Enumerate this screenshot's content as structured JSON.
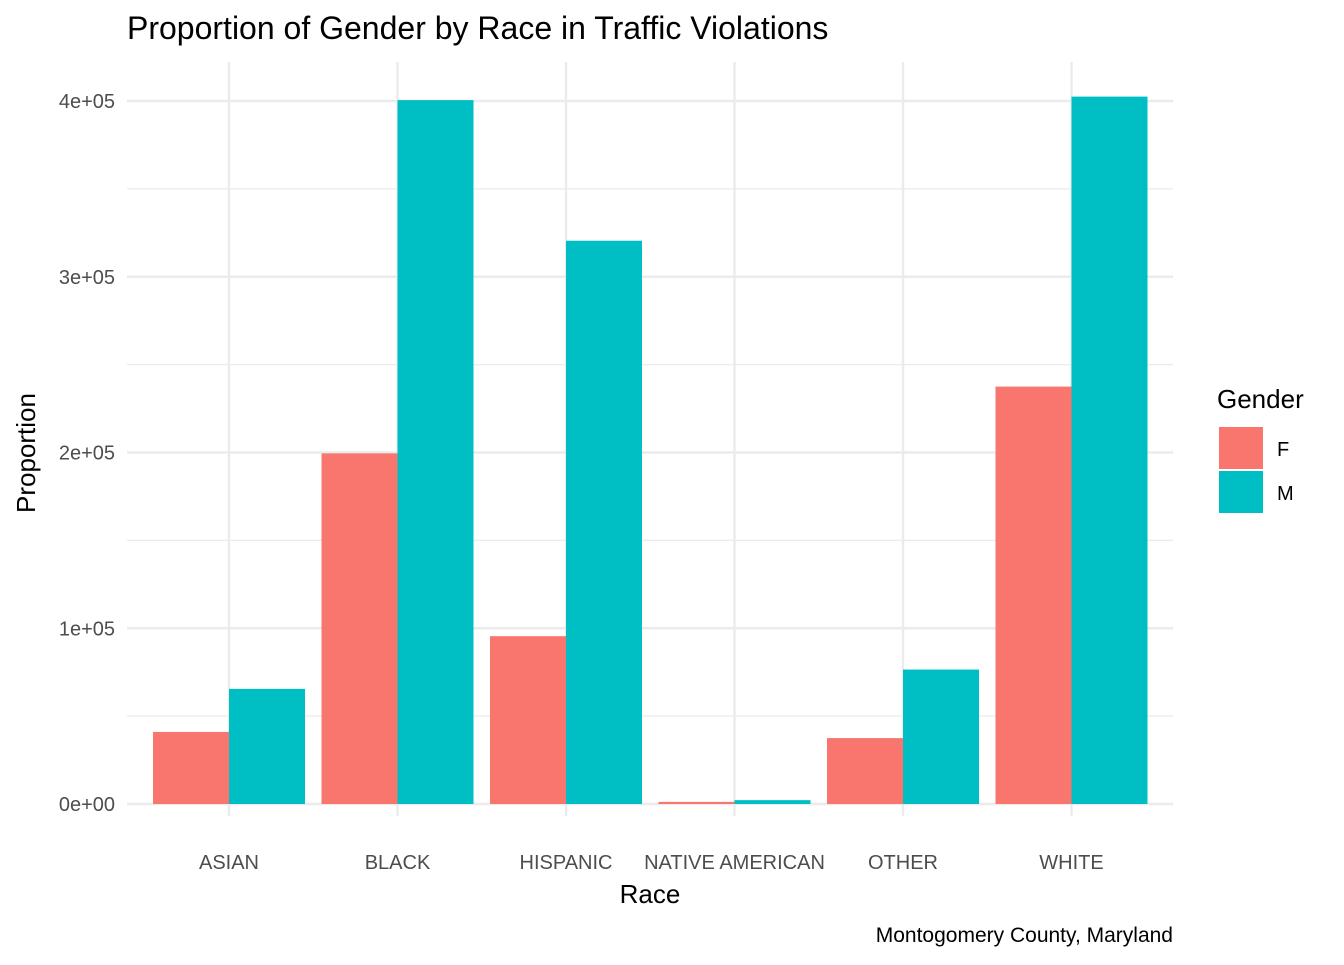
{
  "chart_data": {
    "type": "bar",
    "title": "Proportion of Gender by Race in Traffic Violations",
    "xlabel": "Race",
    "ylabel": "Proportion",
    "caption": "Montogomery County, Maryland",
    "categories": [
      "ASIAN",
      "BLACK",
      "HISPANIC",
      "NATIVE AMERICAN",
      "OTHER",
      "WHITE"
    ],
    "series": [
      {
        "name": "F",
        "color": "#F8766D",
        "values": [
          41000,
          199500,
          95500,
          1200,
          37500,
          237500
        ]
      },
      {
        "name": "M",
        "color": "#00BFC4",
        "values": [
          65500,
          400500,
          320500,
          2200,
          76500,
          402500
        ]
      }
    ],
    "ylim": [
      0,
      400000
    ],
    "yticks": [
      0,
      100000,
      200000,
      300000,
      400000
    ],
    "ytick_labels": [
      "0e+00",
      "1e+05",
      "2e+05",
      "3e+05",
      "4e+05"
    ],
    "legend": {
      "title": "Gender",
      "position": "right"
    },
    "grid": true
  }
}
